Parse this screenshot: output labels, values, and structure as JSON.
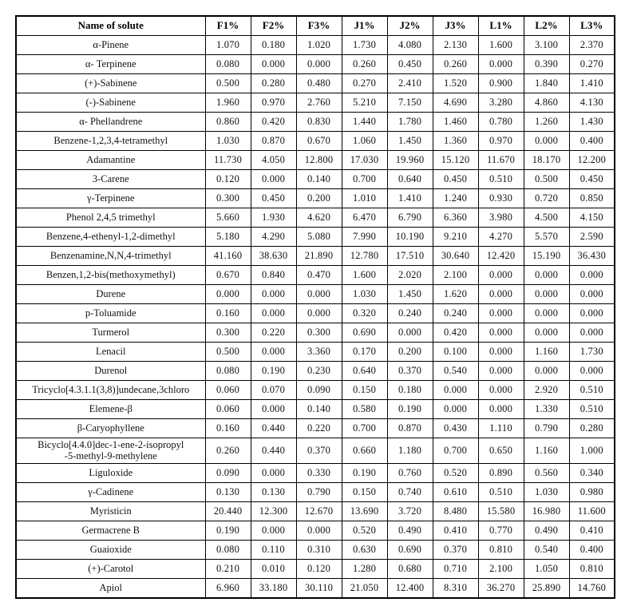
{
  "page": {
    "background_color": "#ffffff",
    "border_color": "#000000",
    "text_color": "#121212"
  },
  "table": {
    "columns": [
      "Name of solute",
      "F1%",
      "F2%",
      "F3%",
      "J1%",
      "J2%",
      "J3%",
      "L1%",
      "L2%",
      "L3%"
    ],
    "rows": [
      {
        "name": "α-Pinene",
        "values": [
          "1.070",
          "0.180",
          "1.020",
          "1.730",
          "4.080",
          "2.130",
          "1.600",
          "3.100",
          "2.370"
        ]
      },
      {
        "name": "α- Terpinene",
        "values": [
          "0.080",
          "0.000",
          "0.000",
          "0.260",
          "0.450",
          "0.260",
          "0.000",
          "0.390",
          "0.270"
        ]
      },
      {
        "name": "(+)-Sabinene",
        "values": [
          "0.500",
          "0.280",
          "0.480",
          "0.270",
          "2.410",
          "1.520",
          "0.900",
          "1.840",
          "1.410"
        ]
      },
      {
        "name": "(-)-Sabinene",
        "values": [
          "1.960",
          "0.970",
          "2.760",
          "5.210",
          "7.150",
          "4.690",
          "3.280",
          "4.860",
          "4.130"
        ]
      },
      {
        "name": "α- Phellandrene",
        "values": [
          "0.860",
          "0.420",
          "0.830",
          "1.440",
          "1.780",
          "1.460",
          "0.780",
          "1.260",
          "1.430"
        ]
      },
      {
        "name": "Benzene-1,2,3,4-tetramethyl",
        "values": [
          "1.030",
          "0.870",
          "0.670",
          "1.060",
          "1.450",
          "1.360",
          "0.970",
          "0.000",
          "0.400"
        ]
      },
      {
        "name": "Adamantine",
        "values": [
          "11.730",
          "4.050",
          "12.800",
          "17.030",
          "19.960",
          "15.120",
          "11.670",
          "18.170",
          "12.200"
        ]
      },
      {
        "name": "3-Carene",
        "values": [
          "0.120",
          "0.000",
          "0.140",
          "0.700",
          "0.640",
          "0.450",
          "0.510",
          "0.500",
          "0.450"
        ]
      },
      {
        "name": "γ-Terpinene",
        "values": [
          "0.300",
          "0.450",
          "0.200",
          "1.010",
          "1.410",
          "1.240",
          "0.930",
          "0.720",
          "0.850"
        ]
      },
      {
        "name": "Phenol 2,4,5 trimethyl",
        "values": [
          "5.660",
          "1.930",
          "4.620",
          "6.470",
          "6.790",
          "6.360",
          "3.980",
          "4.500",
          "4.150"
        ]
      },
      {
        "name": "Benzene,4-ethenyl-1,2-dimethyl",
        "values": [
          "5.180",
          "4.290",
          "5.080",
          "7.990",
          "10.190",
          "9.210",
          "4.270",
          "5.570",
          "2.590"
        ]
      },
      {
        "name": "Benzenamine,N,N,4-trimethyl",
        "values": [
          "41.160",
          "38.630",
          "21.890",
          "12.780",
          "17.510",
          "30.640",
          "12.420",
          "15.190",
          "36.430"
        ]
      },
      {
        "name": "Benzen,1,2-bis(methoxymethyl)",
        "values": [
          "0.670",
          "0.840",
          "0.470",
          "1.600",
          "2.020",
          "2.100",
          "0.000",
          "0.000",
          "0.000"
        ]
      },
      {
        "name": "Durene",
        "values": [
          "0.000",
          "0.000",
          "0.000",
          "1.030",
          "1.450",
          "1.620",
          "0.000",
          "0.000",
          "0.000"
        ]
      },
      {
        "name": "p-Toluamide",
        "values": [
          "0.160",
          "0.000",
          "0.000",
          "0.320",
          "0.240",
          "0.240",
          "0.000",
          "0.000",
          "0.000"
        ]
      },
      {
        "name": "Turmerol",
        "values": [
          "0.300",
          "0.220",
          "0.300",
          "0.690",
          "0.000",
          "0.420",
          "0.000",
          "0.000",
          "0.000"
        ]
      },
      {
        "name": "Lenacil",
        "values": [
          "0.500",
          "0.000",
          "3.360",
          "0.170",
          "0.200",
          "0.100",
          "0.000",
          "1.160",
          "1.730"
        ]
      },
      {
        "name": "Durenol",
        "values": [
          "0.080",
          "0.190",
          "0.230",
          "0.640",
          "0.370",
          "0.540",
          "0.000",
          "0.000",
          "0.000"
        ]
      },
      {
        "name": "Tricyclo[4.3.1.1(3,8)]undecane,3chloro",
        "values": [
          "0.060",
          "0.070",
          "0.090",
          "0.150",
          "0.180",
          "0.000",
          "0.000",
          "2.920",
          "0.510"
        ]
      },
      {
        "name": "Elemene-β",
        "values": [
          "0.060",
          "0.000",
          "0.140",
          "0.580",
          "0.190",
          "0.000",
          "0.000",
          "1.330",
          "0.510"
        ]
      },
      {
        "name": "β-Caryophyllene",
        "values": [
          "0.160",
          "0.440",
          "0.220",
          "0.700",
          "0.870",
          "0.430",
          "1.110",
          "0.790",
          "0.280"
        ]
      },
      {
        "name": "Bicyclo[4.4.0]dec-1-ene-2-isopropyl\n-5-methyl-9-methylene",
        "values": [
          "0.260",
          "0.440",
          "0.370",
          "0.660",
          "1.180",
          "0.700",
          "0.650",
          "1.160",
          "1.000"
        ]
      },
      {
        "name": "Liguloxide",
        "values": [
          "0.090",
          "0.000",
          "0.330",
          "0.190",
          "0.760",
          "0.520",
          "0.890",
          "0.560",
          "0.340"
        ]
      },
      {
        "name": "γ-Cadinene",
        "values": [
          "0.130",
          "0.130",
          "0.790",
          "0.150",
          "0.740",
          "0.610",
          "0.510",
          "1.030",
          "0.980"
        ]
      },
      {
        "name": "Myristicin",
        "values": [
          "20.440",
          "12.300",
          "12.670",
          "13.690",
          "3.720",
          "8.480",
          "15.580",
          "16.980",
          "11.600"
        ]
      },
      {
        "name": "Germacrene B",
        "values": [
          "0.190",
          "0.000",
          "0.000",
          "0.520",
          "0.490",
          "0.410",
          "0.770",
          "0.490",
          "0.410"
        ]
      },
      {
        "name": "Guaioxide",
        "values": [
          "0.080",
          "0.110",
          "0.310",
          "0.630",
          "0.690",
          "0.370",
          "0.810",
          "0.540",
          "0.400"
        ]
      },
      {
        "name": "(+)-Carotol",
        "values": [
          "0.210",
          "0.010",
          "0.120",
          "1.280",
          "0.680",
          "0.710",
          "2.100",
          "1.050",
          "0.810"
        ]
      },
      {
        "name": "Apiol",
        "values": [
          "6.960",
          "33.180",
          "30.110",
          "21.050",
          "12.400",
          "8.310",
          "36.270",
          "25.890",
          "14.760"
        ]
      }
    ]
  }
}
